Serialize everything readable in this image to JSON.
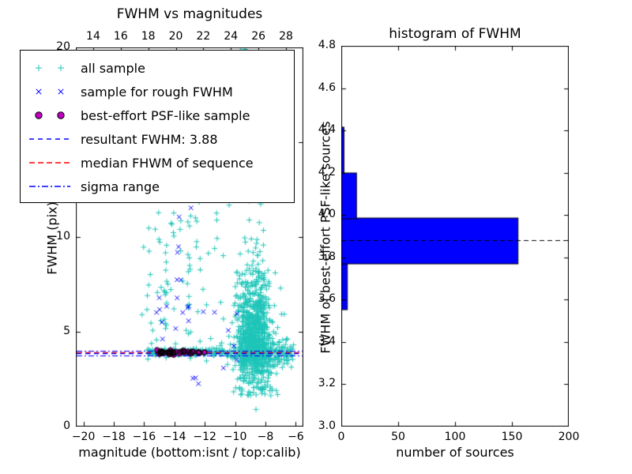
{
  "colors": {
    "all_sample": "#1fc5b9",
    "rough_sample": "#0000ff",
    "psf_sample": "#bf00bf",
    "psf_edge": "#000000",
    "resultant_line": "#0000ff",
    "median_line": "#ff0000",
    "sigma_line": "#0000ff",
    "hist_fill": "#0000ff",
    "hist_edge": "#000000",
    "hist_median": "#000000",
    "axis": "#000000",
    "background": "#ffffff"
  },
  "legend": {
    "items": [
      {
        "label": "all sample",
        "type": "marker",
        "marker": "plus",
        "color": "#1fc5b9"
      },
      {
        "label": "sample for rough FWHM",
        "type": "marker",
        "marker": "x",
        "color": "#0000ff"
      },
      {
        "label": "best-effort PSF-like sample",
        "type": "marker",
        "marker": "circle",
        "color": "#bf00bf"
      },
      {
        "label": "resultant FWHM: 3.88",
        "type": "line",
        "dash": "6,5",
        "color": "#0000ff"
      },
      {
        "label": "median FHWM of sequence",
        "type": "line",
        "dash": "7,4",
        "color": "#ff0000"
      },
      {
        "label": "sigma range",
        "type": "line",
        "dash": "8,3,2,3",
        "color": "#0000ff"
      }
    ]
  },
  "chart_data": [
    {
      "type": "scatter",
      "title": "FWHM vs magnitudes",
      "xlabel": "magnitude (bottom:isnt / top:calib)",
      "ylabel": "FWHM (pix)",
      "xlim": [
        -20.5,
        -5.5
      ],
      "ylim": [
        0,
        20
      ],
      "xlim_top": [
        12.74,
        29.26
      ],
      "x_ticks_bottom": {
        "values": [
          -20,
          -18,
          -16,
          -14,
          -12,
          -10,
          -8,
          -6
        ],
        "labels": [
          "−20",
          "−18",
          "−16",
          "−14",
          "−12",
          "−10",
          "−8",
          "−6"
        ]
      },
      "x_ticks_top": {
        "values": [
          14,
          16,
          18,
          20,
          22,
          24,
          26,
          28
        ],
        "labels": [
          "14",
          "16",
          "18",
          "20",
          "22",
          "24",
          "26",
          "28"
        ]
      },
      "y_ticks": {
        "values": [
          0,
          5,
          10,
          15,
          20
        ],
        "labels": [
          "0",
          "5",
          "10",
          "15",
          "20"
        ]
      },
      "series": [
        {
          "name": "all sample",
          "marker": "plus",
          "color": "#1fc5b9",
          "seed": 7,
          "clusters": [
            {
              "n": 420,
              "x": [
                "norm",
                -8.7,
                0.5
              ],
              "y": [
                "norm",
                5.0,
                1.3
              ]
            },
            {
              "n": 330,
              "x": [
                "norm",
                -8.85,
                0.62
              ],
              "y": [
                "halfnorm",
                3.1,
                3.1
              ]
            },
            {
              "n": 130,
              "x": [
                "norm",
                -8.6,
                0.75
              ],
              "y": [
                "norm",
                3.7,
                0.45
              ]
            },
            {
              "n": 55,
              "x": [
                "norm",
                -8.9,
                0.32
              ],
              "y": [
                "uniform",
                12,
                19.8
              ]
            },
            {
              "n": 26,
              "x": [
                "norm",
                -9.25,
                0.3
              ],
              "y": [
                "uniform",
                18,
                20.2
              ]
            },
            {
              "n": 70,
              "x": [
                "norm",
                -8.75,
                0.75
              ],
              "y": [
                "uniform",
                1.6,
                3.1
              ]
            },
            {
              "n": 72,
              "x": [
                "uniform",
                -16.2,
                -10.3
              ],
              "y": [
                "uniform",
                3.3,
                12.6
              ]
            },
            {
              "n": 14,
              "x": [
                "norm",
                -13.05,
                0.07
              ],
              "y": [
                "uniform",
                4.2,
                12.2
              ]
            },
            {
              "n": 12,
              "x": [
                "norm",
                -14.6,
                0.07
              ],
              "y": [
                "uniform",
                4.0,
                9.6
              ]
            },
            {
              "n": 150,
              "x": [
                "uniform",
                -15.8,
                -10.5
              ],
              "y": [
                "norm",
                3.92,
                0.1
              ]
            },
            {
              "n": 130,
              "x": [
                "uniform",
                -10.5,
                -6.2
              ],
              "y": [
                "norm",
                3.82,
                0.22
              ]
            },
            {
              "n": 28,
              "x": [
                "uniform",
                -7.6,
                -6.1
              ],
              "y": [
                "uniform",
                3.1,
                4.7
              ]
            }
          ]
        },
        {
          "name": "sample for rough FWHM",
          "marker": "x",
          "color": "#0000ff",
          "seed": 11,
          "clusters": [
            {
              "n": 13,
              "x": [
                "uniform",
                -15.5,
                -11.5
              ],
              "y": [
                "uniform",
                3.1,
                8.6
              ]
            },
            {
              "n": 5,
              "x": [
                "uniform",
                -14.2,
                -12.6
              ],
              "y": [
                "uniform",
                9.0,
                12.3
              ]
            },
            {
              "n": 6,
              "x": [
                "uniform",
                -11.5,
                -9.6
              ],
              "y": [
                "uniform",
                3.0,
                6.6
              ]
            },
            {
              "n": 3,
              "x": [
                "uniform",
                -13.0,
                -12.2
              ],
              "y": [
                "uniform",
                2.2,
                2.9
              ]
            },
            {
              "n": 4,
              "x": [
                "uniform",
                -15.4,
                -14.5
              ],
              "y": [
                "uniform",
                5.4,
                7.6
              ]
            }
          ]
        },
        {
          "name": "best-effort PSF-like sample",
          "marker": "circle",
          "color": "#bf00bf",
          "edge": "#000000",
          "seed": 13,
          "clusters": [
            {
              "n": 48,
              "x": [
                "uniform",
                -15.3,
                -12.0
              ],
              "y": [
                "norm",
                3.9,
                0.055
              ]
            }
          ]
        }
      ],
      "lines": [
        {
          "name": "sigma range",
          "y": [
            3.74,
            4.02
          ],
          "color": "#0000ff",
          "dash": [
            7,
            3,
            2,
            3
          ],
          "width": 1
        },
        {
          "name": "median FHWM of sequence",
          "y": [
            3.93
          ],
          "color": "#ff0000",
          "dash": [
            7,
            4
          ],
          "width": 1.3
        },
        {
          "name": "resultant FWHM: 3.88",
          "y": [
            3.88
          ],
          "color": "#0000ff",
          "dash": [
            6,
            5
          ],
          "width": 1.3
        }
      ]
    },
    {
      "type": "bar",
      "orientation": "horizontal",
      "title": "histogram of FWHM",
      "xlabel": "number of sources",
      "ylabel": "FWHM of best-effort PSF-like sources",
      "xlim": [
        0,
        200
      ],
      "ylim": [
        3.0,
        4.8
      ],
      "x_ticks": {
        "values": [
          0,
          50,
          100,
          150,
          200
        ],
        "labels": [
          "0",
          "50",
          "100",
          "150",
          "200"
        ]
      },
      "y_ticks": {
        "values": [
          3.0,
          3.2,
          3.4,
          3.6,
          3.8,
          4.0,
          4.2,
          4.4,
          4.6,
          4.8
        ],
        "labels": [
          "3.0",
          "3.2",
          "3.4",
          "3.6",
          "3.8",
          "4.0",
          "4.2",
          "4.4",
          "4.6",
          "4.8"
        ]
      },
      "bin_edges": [
        3.555,
        3.77,
        3.985,
        4.2,
        4.415
      ],
      "counts": [
        5,
        155,
        13,
        2
      ],
      "bar_color": "#0000ff",
      "bar_edge": "#000000",
      "median_line": {
        "value": 3.88,
        "color": "#000000",
        "dash": [
          6,
          4
        ]
      }
    }
  ]
}
